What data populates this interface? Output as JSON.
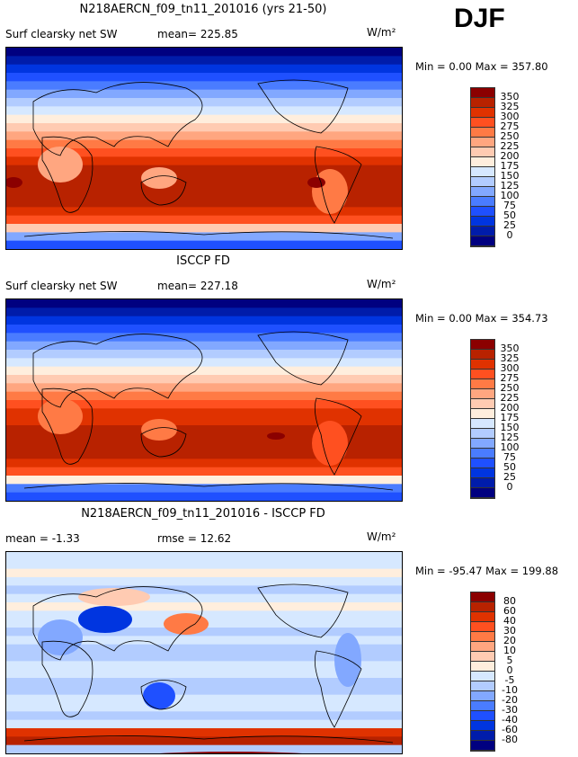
{
  "season": "DJF",
  "panels": [
    {
      "title": "N218AERCN_f09_tn11_201016 (yrs 21-50)",
      "variable": "Surf clearsky net SW",
      "stat1": "mean= 225.85",
      "stat2": "",
      "units": "W/m²",
      "minmax": "Min =    0.00 Max = 357.80",
      "levels": [
        "350",
        "325",
        "300",
        "275",
        "250",
        "225",
        "200",
        "175",
        "150",
        "125",
        "100",
        "75",
        "50",
        "25",
        "0"
      ],
      "mean": 225.85,
      "min": 0.0,
      "max": 357.8
    },
    {
      "title": "ISCCP FD",
      "variable": "Surf clearsky net SW",
      "stat1": "mean= 227.18",
      "stat2": "",
      "units": "W/m²",
      "minmax": "Min =    0.00 Max = 354.73",
      "levels": [
        "350",
        "325",
        "300",
        "275",
        "250",
        "225",
        "200",
        "175",
        "150",
        "125",
        "100",
        "75",
        "50",
        "25",
        "0"
      ],
      "mean": 227.18,
      "min": 0.0,
      "max": 354.73
    },
    {
      "title": "N218AERCN_f09_tn11_201016 - ISCCP FD",
      "variable": "",
      "stat1": "mean =  -1.33",
      "stat2": "rmse =  12.62",
      "units": "W/m²",
      "minmax": "Min = -95.47 Max = 199.88",
      "levels": [
        "80",
        "60",
        "40",
        "30",
        "20",
        "10",
        "5",
        "0",
        "-5",
        "-10",
        "-20",
        "-30",
        "-40",
        "-60",
        "-80"
      ],
      "mean": -1.33,
      "rmse": 12.62,
      "min": -95.47,
      "max": 199.88
    }
  ],
  "colors": [
    "#8b0000",
    "#b82200",
    "#e03200",
    "#ff5020",
    "#ff7a45",
    "#ffa680",
    "#ffcbb2",
    "#ffeedd",
    "#d6e8ff",
    "#b2ccff",
    "#82a8ff",
    "#4a7cff",
    "#1f50ff",
    "#0035e0",
    "#001caa",
    "#000080"
  ]
}
